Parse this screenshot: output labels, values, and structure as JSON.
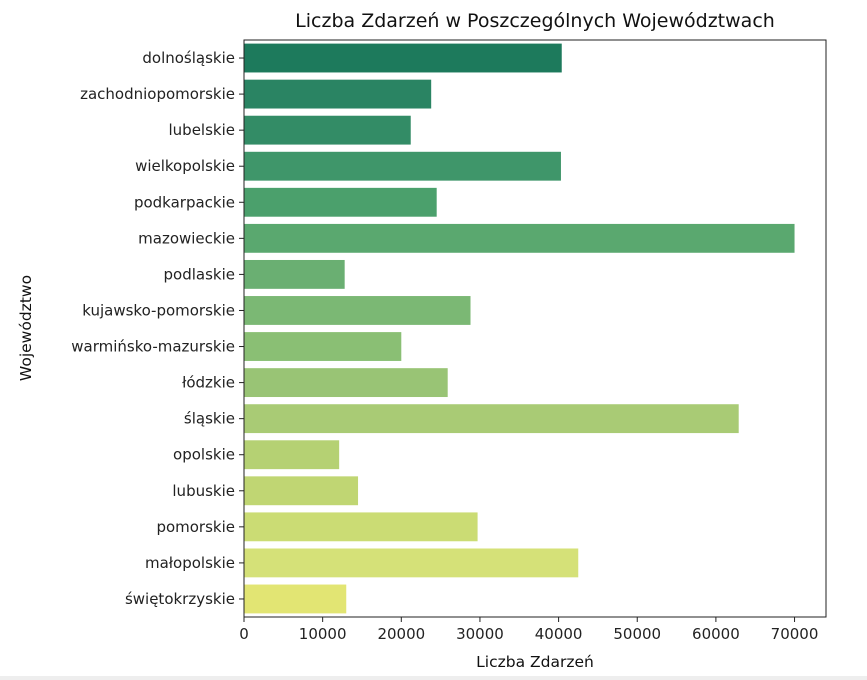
{
  "chart_data": {
    "type": "bar",
    "orientation": "horizontal",
    "title": "Liczba Zdarzeń w Poszczególnych Województwach",
    "xlabel": "Liczba Zdarzeń",
    "ylabel": "Województwo",
    "xlim": [
      0,
      74000
    ],
    "xticks": [
      "0",
      "10000",
      "20000",
      "30000",
      "40000",
      "50000",
      "60000",
      "70000"
    ],
    "grid": false,
    "categories": [
      "dolnośląskie",
      "zachodniopomorskie",
      "lubelskie",
      "wielkopolskie",
      "podkarpackie",
      "mazowieckie",
      "podlaskie",
      "kujawsko-pomorskie",
      "warmińsko-mazurskie",
      "łódzkie",
      "śląskie",
      "opolskie",
      "lubuskie",
      "pomorskie",
      "małopolskie",
      "świętokrzyskie"
    ],
    "values": [
      40400,
      23800,
      21200,
      40300,
      24500,
      70000,
      12800,
      28800,
      20000,
      25900,
      62900,
      12100,
      14500,
      29700,
      42500,
      13000
    ],
    "colors": [
      "#1d7a5c",
      "#2a8463",
      "#338c66",
      "#3f966a",
      "#4ba06c",
      "#5aa86f",
      "#6aaf72",
      "#7bb874",
      "#8abf74",
      "#99c475",
      "#a9cb75",
      "#b5d173",
      "#c0d673",
      "#cbdc74",
      "#d5e178",
      "#e2e573"
    ]
  }
}
